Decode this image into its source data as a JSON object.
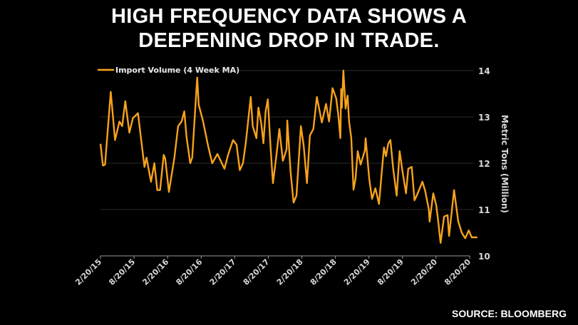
{
  "title_line1": "HIGH FREQUENCY DATA SHOWS A",
  "title_line2": "DEEPENING DROP IN TRADE.",
  "source": "SOURCE: BLOOMBERG",
  "colors": {
    "background": "#000000",
    "line": "#f7a21b",
    "text": "#ffffff",
    "grid": "#2a2a2a"
  },
  "chart_data": {
    "type": "line",
    "title": "HIGH FREQUENCY DATA SHOWS A DEEPENING DROP IN TRADE.",
    "xlabel": "",
    "ylabel": "Metric Tons (Million)",
    "ylim": [
      10,
      14
    ],
    "y_ticks": [
      "14",
      "13",
      "12",
      "11",
      "10"
    ],
    "y_axis_side": "right",
    "x_ticks": [
      "2/20/15",
      "8/20/15",
      "2/20/16",
      "8/20/16",
      "2/20/17",
      "8/20/17",
      "2/20/18",
      "8/20/18",
      "2/20/19",
      "8/20/19",
      "2/20/20",
      "8/20/20"
    ],
    "x_range": [
      "2015-02-20",
      "2020-08-20"
    ],
    "grid": "horizontal",
    "legend_placement": "top-left",
    "series": [
      {
        "name": "Import Volume (4 Week MA)",
        "points": [
          [
            "2015-02-20",
            12.42
          ],
          [
            "2015-03-05",
            11.95
          ],
          [
            "2015-03-17",
            11.97
          ],
          [
            "2015-04-17",
            13.54
          ],
          [
            "2015-05-10",
            12.5
          ],
          [
            "2015-06-03",
            12.9
          ],
          [
            "2015-06-18",
            12.8
          ],
          [
            "2015-07-05",
            13.34
          ],
          [
            "2015-07-27",
            12.66
          ],
          [
            "2015-08-15",
            12.97
          ],
          [
            "2015-09-12",
            13.08
          ],
          [
            "2015-09-28",
            12.54
          ],
          [
            "2015-10-17",
            11.92
          ],
          [
            "2015-10-28",
            12.12
          ],
          [
            "2015-11-22",
            11.6
          ],
          [
            "2015-12-10",
            12.0
          ],
          [
            "2015-12-26",
            11.42
          ],
          [
            "2016-01-10",
            11.42
          ],
          [
            "2016-01-30",
            12.18
          ],
          [
            "2016-02-07",
            12.1
          ],
          [
            "2016-02-27",
            11.38
          ],
          [
            "2016-03-28",
            12.12
          ],
          [
            "2016-04-17",
            12.8
          ],
          [
            "2016-05-06",
            12.9
          ],
          [
            "2016-05-21",
            13.12
          ],
          [
            "2016-06-02",
            12.57
          ],
          [
            "2016-06-22",
            12.0
          ],
          [
            "2016-07-03",
            12.12
          ],
          [
            "2016-07-30",
            13.85
          ],
          [
            "2016-08-07",
            13.26
          ],
          [
            "2016-08-30",
            12.92
          ],
          [
            "2016-09-27",
            12.38
          ],
          [
            "2016-10-20",
            12.0
          ],
          [
            "2016-11-17",
            12.2
          ],
          [
            "2016-12-25",
            11.88
          ],
          [
            "2017-01-14",
            12.18
          ],
          [
            "2017-02-10",
            12.5
          ],
          [
            "2017-03-01",
            12.4
          ],
          [
            "2017-03-19",
            11.85
          ],
          [
            "2017-04-05",
            12.0
          ],
          [
            "2017-04-20",
            12.43
          ],
          [
            "2017-05-17",
            13.43
          ],
          [
            "2017-05-28",
            12.8
          ],
          [
            "2017-06-17",
            12.54
          ],
          [
            "2017-06-28",
            13.2
          ],
          [
            "2017-07-14",
            12.85
          ],
          [
            "2017-07-25",
            12.43
          ],
          [
            "2017-08-06",
            13.12
          ],
          [
            "2017-08-18",
            13.38
          ],
          [
            "2017-09-03",
            12.28
          ],
          [
            "2017-09-15",
            11.57
          ],
          [
            "2017-10-04",
            12.18
          ],
          [
            "2017-10-20",
            12.74
          ],
          [
            "2017-11-08",
            12.05
          ],
          [
            "2017-11-28",
            12.3
          ],
          [
            "2017-12-02",
            12.92
          ],
          [
            "2017-12-20",
            11.82
          ],
          [
            "2018-01-05",
            11.15
          ],
          [
            "2018-01-21",
            11.3
          ],
          [
            "2018-02-14",
            12.8
          ],
          [
            "2018-03-01",
            12.38
          ],
          [
            "2018-03-19",
            11.57
          ],
          [
            "2018-04-04",
            12.6
          ],
          [
            "2018-04-23",
            12.74
          ],
          [
            "2018-05-12",
            13.43
          ],
          [
            "2018-06-08",
            12.88
          ],
          [
            "2018-07-01",
            13.28
          ],
          [
            "2018-07-17",
            12.9
          ],
          [
            "2018-08-05",
            13.62
          ],
          [
            "2018-08-25",
            13.4
          ],
          [
            "2018-09-05",
            13.05
          ],
          [
            "2018-09-17",
            12.54
          ],
          [
            "2018-09-21",
            13.6
          ],
          [
            "2018-09-25",
            13.2
          ],
          [
            "2018-10-03",
            14.0
          ],
          [
            "2018-10-15",
            13.18
          ],
          [
            "2018-10-26",
            13.46
          ],
          [
            "2018-11-03",
            12.9
          ],
          [
            "2018-11-15",
            12.54
          ],
          [
            "2018-11-27",
            11.43
          ],
          [
            "2018-12-08",
            11.66
          ],
          [
            "2018-12-20",
            12.26
          ],
          [
            "2019-01-05",
            11.97
          ],
          [
            "2019-01-28",
            12.28
          ],
          [
            "2019-02-01",
            12.54
          ],
          [
            "2019-02-21",
            11.66
          ],
          [
            "2019-03-08",
            11.23
          ],
          [
            "2019-03-26",
            11.46
          ],
          [
            "2019-04-15",
            11.12
          ],
          [
            "2019-04-30",
            11.82
          ],
          [
            "2019-05-12",
            12.34
          ],
          [
            "2019-05-23",
            12.15
          ],
          [
            "2019-06-04",
            12.42
          ],
          [
            "2019-06-16",
            12.5
          ],
          [
            "2019-07-01",
            11.88
          ],
          [
            "2019-07-20",
            11.3
          ],
          [
            "2019-08-05",
            12.26
          ],
          [
            "2019-08-21",
            11.82
          ],
          [
            "2019-09-09",
            11.35
          ],
          [
            "2019-09-21",
            11.88
          ],
          [
            "2019-10-10",
            11.92
          ],
          [
            "2019-10-25",
            11.2
          ],
          [
            "2019-11-06",
            11.3
          ],
          [
            "2019-12-07",
            11.6
          ],
          [
            "2019-12-22",
            11.4
          ],
          [
            "2020-01-11",
            11.0
          ],
          [
            "2020-01-15",
            10.74
          ],
          [
            "2020-02-04",
            11.35
          ],
          [
            "2020-02-20",
            11.1
          ],
          [
            "2020-02-28",
            10.85
          ],
          [
            "2020-03-15",
            10.28
          ],
          [
            "2020-04-03",
            10.85
          ],
          [
            "2020-04-22",
            10.88
          ],
          [
            "2020-04-30",
            10.43
          ],
          [
            "2020-05-27",
            11.42
          ],
          [
            "2020-06-19",
            10.74
          ],
          [
            "2020-07-08",
            10.5
          ],
          [
            "2020-07-27",
            10.38
          ],
          [
            "2020-08-15",
            10.55
          ],
          [
            "2020-08-31",
            10.4
          ],
          [
            "2020-10-01",
            10.4
          ]
        ]
      }
    ]
  }
}
